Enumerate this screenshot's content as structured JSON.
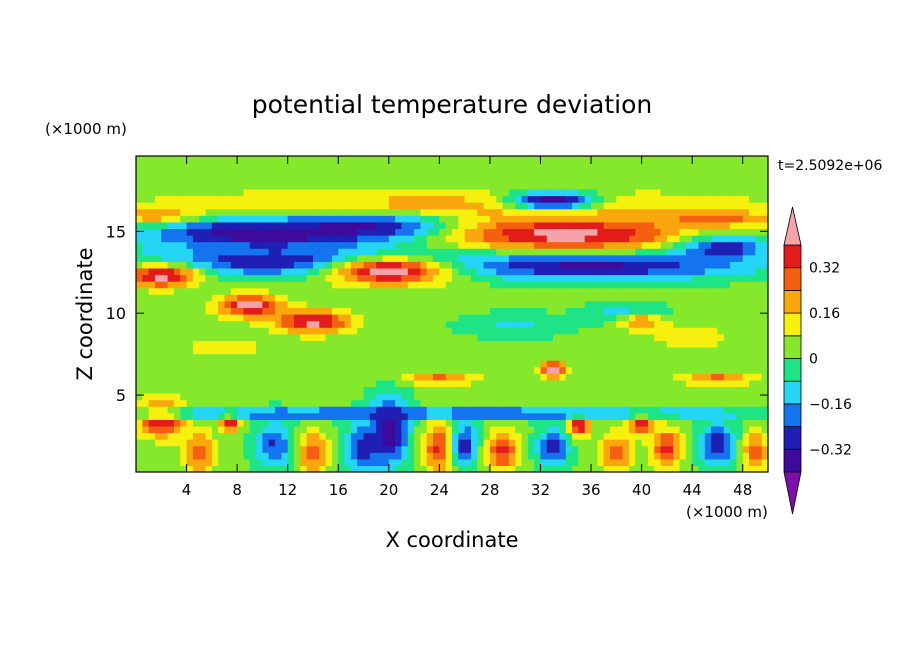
{
  "chart_data": {
    "type": "heatmap",
    "title": "potential temperature deviation",
    "xlabel": "X coordinate",
    "ylabel": "Z coordinate",
    "x_unit": "(×1000 m)",
    "y_unit": "(×1000 m)",
    "time_label": "t=2.5092e+06",
    "xlim": [
      0,
      50
    ],
    "ylim": [
      0.3,
      19.6
    ],
    "x_ticks": [
      4,
      8,
      12,
      16,
      20,
      24,
      28,
      32,
      36,
      40,
      44,
      48
    ],
    "y_ticks": [
      5,
      10,
      15
    ],
    "x_tick_labels": [
      "4",
      "8",
      "12",
      "16",
      "20",
      "24",
      "28",
      "32",
      "36",
      "40",
      "44",
      "48"
    ],
    "y_tick_labels": [
      "5",
      "10",
      "15"
    ],
    "colorbar": {
      "levels": [
        -0.4,
        -0.32,
        -0.24,
        -0.16,
        -0.08,
        0,
        0.08,
        0.16,
        0.24,
        0.32,
        0.4
      ],
      "labels": [
        {
          "value": 0.32,
          "text": "0.32"
        },
        {
          "value": 0.16,
          "text": "0.16"
        },
        {
          "value": 0,
          "text": "0"
        },
        {
          "value": -0.16,
          "text": "−0.16"
        },
        {
          "value": -0.32,
          "text": "−0.32"
        }
      ],
      "colors": [
        "#7b0fa8",
        "#3d0a9c",
        "#1f1fb4",
        "#1474ef",
        "#24d5f5",
        "#1fe486",
        "#86e82b",
        "#f6f00e",
        "#f9a70d",
        "#f46010",
        "#e21b1b",
        "#f5a3a9"
      ],
      "extend": "both"
    },
    "features": [
      {
        "x": 25,
        "z": 18.0,
        "rx": 26,
        "rz": 0.8,
        "value": 0.05
      },
      {
        "x": 25,
        "z": 16.6,
        "rx": 24,
        "rz": 0.9,
        "value": 0.2
      },
      {
        "x": 2,
        "z": 15.9,
        "rx": 3,
        "rz": 0.5,
        "value": 0.3
      },
      {
        "x": 46,
        "z": 15.8,
        "rx": 4,
        "rz": 0.5,
        "value": 0.3
      },
      {
        "x": 33,
        "z": 16.9,
        "rx": 3.5,
        "rz": 0.6,
        "value": -0.4
      },
      {
        "x": 10,
        "z": 14.9,
        "rx": 9,
        "rz": 0.9,
        "value": -0.4
      },
      {
        "x": 19,
        "z": 15.2,
        "rx": 7,
        "rz": 0.8,
        "value": -0.4
      },
      {
        "x": 46,
        "z": 14.1,
        "rx": 4,
        "rz": 0.8,
        "value": -0.4
      },
      {
        "x": 34,
        "z": 14.8,
        "rx": 10,
        "rz": 1.1,
        "value": 0.44
      },
      {
        "x": 13,
        "z": 13.2,
        "rx": 12,
        "rz": 0.9,
        "value": -0.34
      },
      {
        "x": 36,
        "z": 12.9,
        "rx": 12,
        "rz": 0.8,
        "value": -0.34
      },
      {
        "x": 20,
        "z": 12.6,
        "rx": 5,
        "rz": 0.9,
        "value": 0.44
      },
      {
        "x": 2,
        "z": 12.3,
        "rx": 3,
        "rz": 0.7,
        "value": 0.44
      },
      {
        "x": 9,
        "z": 10.5,
        "rx": 2.5,
        "rz": 0.7,
        "value": 0.44
      },
      {
        "x": 14,
        "z": 9.5,
        "rx": 3,
        "rz": 0.7,
        "value": 0.44
      },
      {
        "x": 39,
        "z": 9.9,
        "rx": 3,
        "rz": 0.6,
        "value": -0.2
      },
      {
        "x": 40,
        "z": 9.5,
        "rx": 2,
        "rz": 0.5,
        "value": 0.3
      },
      {
        "x": 30,
        "z": 9.3,
        "rx": 4,
        "rz": 0.7,
        "value": -0.1
      },
      {
        "x": 7,
        "z": 8.0,
        "rx": 5,
        "rz": 1.0,
        "value": 0.1
      },
      {
        "x": 44,
        "z": 8.5,
        "rx": 5,
        "rz": 1.2,
        "value": 0.1
      },
      {
        "x": 24,
        "z": 6.0,
        "rx": 3,
        "rz": 0.3,
        "value": 0.3
      },
      {
        "x": 33,
        "z": 6.6,
        "rx": 1,
        "rz": 0.5,
        "value": 0.44
      },
      {
        "x": 46,
        "z": 6.0,
        "rx": 3,
        "rz": 0.3,
        "value": 0.3
      },
      {
        "x": 2,
        "z": 3.6,
        "rx": 1.8,
        "rz": 1.1,
        "value": 0.44
      },
      {
        "x": 7.5,
        "z": 3.5,
        "rx": 0.8,
        "rz": 0.6,
        "value": 0.44
      },
      {
        "x": 35,
        "z": 3.2,
        "rx": 0.8,
        "rz": 0.7,
        "value": 0.44
      },
      {
        "x": 40,
        "z": 3.4,
        "rx": 0.9,
        "rz": 0.8,
        "value": 0.44
      },
      {
        "x": 20,
        "z": 2.8,
        "rx": 1.5,
        "rz": 2.0,
        "value": -0.4
      },
      {
        "x": 22,
        "z": 3.9,
        "rx": 26,
        "rz": 0.35,
        "value": -0.28
      },
      {
        "x": 5,
        "z": 1.5,
        "rx": 1.2,
        "rz": 1.3,
        "value": 0.3
      },
      {
        "x": 11,
        "z": 2.0,
        "rx": 1.5,
        "rz": 1.4,
        "value": -0.25
      },
      {
        "x": 14,
        "z": 1.5,
        "rx": 1.2,
        "rz": 1.3,
        "value": 0.3
      },
      {
        "x": 18,
        "z": 1.8,
        "rx": 1.5,
        "rz": 1.4,
        "value": -0.3
      },
      {
        "x": 24,
        "z": 1.8,
        "rx": 1.2,
        "rz": 1.5,
        "value": 0.35
      },
      {
        "x": 26,
        "z": 2.0,
        "rx": 1.0,
        "rz": 1.3,
        "value": -0.3
      },
      {
        "x": 29,
        "z": 1.6,
        "rx": 1.2,
        "rz": 1.2,
        "value": 0.35
      },
      {
        "x": 33,
        "z": 1.8,
        "rx": 1.2,
        "rz": 1.2,
        "value": -0.3
      },
      {
        "x": 38,
        "z": 1.5,
        "rx": 1.2,
        "rz": 1.2,
        "value": 0.3
      },
      {
        "x": 42,
        "z": 1.8,
        "rx": 1.2,
        "rz": 1.2,
        "value": 0.35
      },
      {
        "x": 46,
        "z": 2.0,
        "rx": 1.5,
        "rz": 1.3,
        "value": -0.3
      },
      {
        "x": 49,
        "z": 1.6,
        "rx": 1.0,
        "rz": 1.2,
        "value": 0.3
      }
    ],
    "background_value": 0.02
  }
}
